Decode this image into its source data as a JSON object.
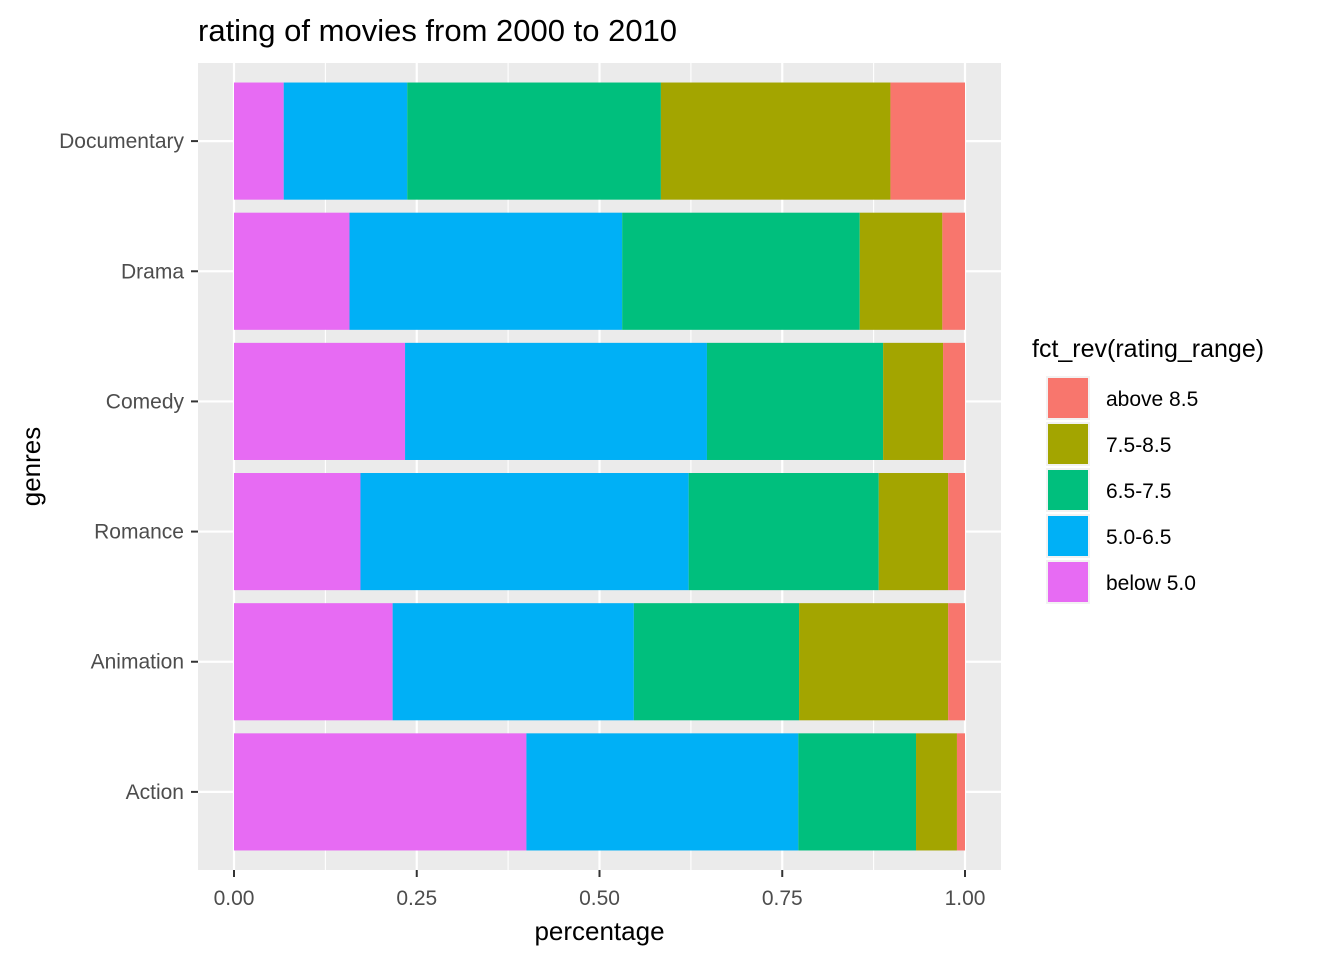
{
  "chart_data": {
    "type": "bar",
    "orientation": "horizontal",
    "stacked": true,
    "title": "rating of movies from 2000 to 2010",
    "xlabel": "percentage",
    "ylabel": "genres",
    "xlim": [
      0,
      1
    ],
    "x_ticks": [
      "0.00",
      "0.25",
      "0.50",
      "0.75",
      "1.00"
    ],
    "grid": true,
    "legend_position": "right",
    "legend_title": "fct_rev(rating_range)",
    "categories": [
      "Action",
      "Animation",
      "Romance",
      "Comedy",
      "Drama",
      "Documentary"
    ],
    "series": [
      {
        "name": "below 5.0",
        "color": "#E76BF3",
        "values": [
          0.4,
          0.217,
          0.173,
          0.234,
          0.158,
          0.068
        ]
      },
      {
        "name": "5.0-6.5",
        "color": "#00B0F6",
        "values": [
          0.372,
          0.33,
          0.449,
          0.413,
          0.373,
          0.169
        ]
      },
      {
        "name": "6.5-7.5",
        "color": "#00BF7D",
        "values": [
          0.161,
          0.226,
          0.26,
          0.241,
          0.325,
          0.347
        ]
      },
      {
        "name": "7.5-8.5",
        "color": "#A3A500",
        "values": [
          0.056,
          0.204,
          0.095,
          0.082,
          0.113,
          0.314
        ]
      },
      {
        "name": "above 8.5",
        "color": "#F8766D",
        "values": [
          0.011,
          0.023,
          0.023,
          0.03,
          0.031,
          0.102
        ]
      }
    ],
    "legend_order": [
      "above 8.5",
      "7.5-8.5",
      "6.5-7.5",
      "5.0-6.5",
      "below 5.0"
    ]
  }
}
